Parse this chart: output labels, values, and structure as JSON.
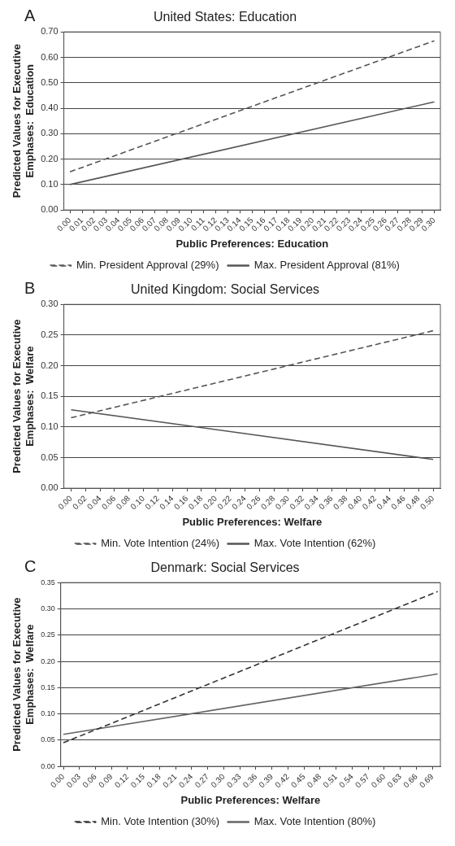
{
  "chart_data": [
    {
      "type": "line",
      "title": "United States: Education",
      "annotations": [
        "A"
      ],
      "xlabel": "Public Preferences: Education",
      "ylabel": "Predicted Values for Executive Emphases:  Education",
      "xlim": [
        -0.005,
        0.305
      ],
      "xticks": [
        {
          "value": 0,
          "label": "0.00"
        },
        {
          "value": 0.01,
          "label": "0.01"
        },
        {
          "value": 0.02,
          "label": "0.02"
        },
        {
          "value": 0.03,
          "label": "0.03"
        },
        {
          "value": 0.04,
          "label": "0.04"
        },
        {
          "value": 0.05,
          "label": "0.05"
        },
        {
          "value": 0.06,
          "label": "0.06"
        },
        {
          "value": 0.07,
          "label": "0.07"
        },
        {
          "value": 0.08,
          "label": "0.08"
        },
        {
          "value": 0.09,
          "label": "0.09"
        },
        {
          "value": 0.1,
          "label": "0.10"
        },
        {
          "value": 0.11,
          "label": "0.11"
        },
        {
          "value": 0.12,
          "label": "0.12"
        },
        {
          "value": 0.13,
          "label": "0.13"
        },
        {
          "value": 0.14,
          "label": "0.14"
        },
        {
          "value": 0.15,
          "label": "0.15"
        },
        {
          "value": 0.16,
          "label": "0.16"
        },
        {
          "value": 0.17,
          "label": "0.17"
        },
        {
          "value": 0.18,
          "label": "0.18"
        },
        {
          "value": 0.19,
          "label": "0.19"
        },
        {
          "value": 0.2,
          "label": "0.20"
        },
        {
          "value": 0.21,
          "label": "0.21"
        },
        {
          "value": 0.22,
          "label": "0.22"
        },
        {
          "value": 0.23,
          "label": "0.23"
        },
        {
          "value": 0.24,
          "label": "0.24"
        },
        {
          "value": 0.25,
          "label": "0.25"
        },
        {
          "value": 0.26,
          "label": "0.26"
        },
        {
          "value": 0.27,
          "label": "0.27"
        },
        {
          "value": 0.28,
          "label": "0.28"
        },
        {
          "value": 0.29,
          "label": "0.29"
        },
        {
          "value": 0.3,
          "label": "0.30"
        }
      ],
      "ylim": [
        0,
        0.7
      ],
      "yticks": [
        {
          "value": 0,
          "label": "0.00"
        },
        {
          "value": 0.1,
          "label": "0.10"
        },
        {
          "value": 0.2,
          "label": "0.20"
        },
        {
          "value": 0.3,
          "label": "0.30"
        },
        {
          "value": 0.4,
          "label": "0.40"
        },
        {
          "value": 0.5,
          "label": "0.50"
        },
        {
          "value": 0.6,
          "label": "0.60"
        },
        {
          "value": 0.7,
          "label": "0.70"
        }
      ],
      "grid": "y",
      "legend": "bottom",
      "x": [
        0,
        0.3
      ],
      "series": [
        {
          "name": "Min. President Approval (29%)",
          "color": "#555555",
          "line_style": "dashed",
          "values": [
            0.15,
            0.665
          ]
        },
        {
          "name": "Max. President Approval (81%)",
          "color": "#555555",
          "line_style": "solid",
          "values": [
            0.1,
            0.425
          ]
        }
      ]
    },
    {
      "type": "line",
      "title": "United Kingdom: Social Services",
      "annotations": [
        "B"
      ],
      "xlabel": "Public Preferences: Welfare",
      "ylabel": "Predicted Values for Executive Emphases:  Welfare",
      "xlim": [
        -0.01,
        0.51
      ],
      "xticks": [
        {
          "value": 0,
          "label": "0.00"
        },
        {
          "value": 0.02,
          "label": "0.02"
        },
        {
          "value": 0.04,
          "label": "0.04"
        },
        {
          "value": 0.06,
          "label": "0.06"
        },
        {
          "value": 0.08,
          "label": "0.08"
        },
        {
          "value": 0.1,
          "label": "0.10"
        },
        {
          "value": 0.12,
          "label": "0.12"
        },
        {
          "value": 0.14,
          "label": "0.14"
        },
        {
          "value": 0.16,
          "label": "0.16"
        },
        {
          "value": 0.18,
          "label": "0.18"
        },
        {
          "value": 0.2,
          "label": "0.20"
        },
        {
          "value": 0.22,
          "label": "0.22"
        },
        {
          "value": 0.24,
          "label": "0.24"
        },
        {
          "value": 0.26,
          "label": "0.26"
        },
        {
          "value": 0.28,
          "label": "0.28"
        },
        {
          "value": 0.3,
          "label": "0.30"
        },
        {
          "value": 0.32,
          "label": "0.32"
        },
        {
          "value": 0.34,
          "label": "0.34"
        },
        {
          "value": 0.36,
          "label": "0.36"
        },
        {
          "value": 0.38,
          "label": "0.38"
        },
        {
          "value": 0.4,
          "label": "0.40"
        },
        {
          "value": 0.42,
          "label": "0.42"
        },
        {
          "value": 0.44,
          "label": "0.44"
        },
        {
          "value": 0.46,
          "label": "0.46"
        },
        {
          "value": 0.48,
          "label": "0.48"
        },
        {
          "value": 0.5,
          "label": "0.50"
        }
      ],
      "ylim": [
        0,
        0.3
      ],
      "yticks": [
        {
          "value": 0,
          "label": "0.00"
        },
        {
          "value": 0.05,
          "label": "0.05"
        },
        {
          "value": 0.1,
          "label": "0.10"
        },
        {
          "value": 0.15,
          "label": "0.15"
        },
        {
          "value": 0.2,
          "label": "0.20"
        },
        {
          "value": 0.25,
          "label": "0.25"
        },
        {
          "value": 0.3,
          "label": "0.30"
        }
      ],
      "grid": "y",
      "legend": "bottom",
      "x": [
        0,
        0.5
      ],
      "series": [
        {
          "name": "Min. Vote Intention (24%)",
          "color": "#555555",
          "line_style": "dashed",
          "values": [
            0.115,
            0.257
          ]
        },
        {
          "name": "Max. Vote Intention (62%)",
          "color": "#555555",
          "line_style": "solid",
          "values": [
            0.128,
            0.047
          ]
        }
      ]
    },
    {
      "type": "line",
      "title": "Denmark: Social Services",
      "annotations": [
        "C"
      ],
      "xlabel": "Public Preferences: Welfare",
      "ylabel": "Predicted Values for Executive Emphases:  Welfare",
      "xlim": [
        -0.005,
        0.705
      ],
      "xticks": [
        {
          "value": 0,
          "label": "0.00"
        },
        {
          "value": 0.03,
          "label": "0.03"
        },
        {
          "value": 0.06,
          "label": "0.06"
        },
        {
          "value": 0.09,
          "label": "0.09"
        },
        {
          "value": 0.12,
          "label": "0.12"
        },
        {
          "value": 0.15,
          "label": "0.15"
        },
        {
          "value": 0.18,
          "label": "0.18"
        },
        {
          "value": 0.21,
          "label": "0.21"
        },
        {
          "value": 0.24,
          "label": "0.24"
        },
        {
          "value": 0.27,
          "label": "0.27"
        },
        {
          "value": 0.3,
          "label": "0.30"
        },
        {
          "value": 0.33,
          "label": "0.33"
        },
        {
          "value": 0.36,
          "label": "0.36"
        },
        {
          "value": 0.39,
          "label": "0.39"
        },
        {
          "value": 0.42,
          "label": "0.42"
        },
        {
          "value": 0.45,
          "label": "0.45"
        },
        {
          "value": 0.48,
          "label": "0.48"
        },
        {
          "value": 0.51,
          "label": "0.51"
        },
        {
          "value": 0.54,
          "label": "0.54"
        },
        {
          "value": 0.57,
          "label": "0.57"
        },
        {
          "value": 0.6,
          "label": "0.60"
        },
        {
          "value": 0.63,
          "label": "0.63"
        },
        {
          "value": 0.66,
          "label": "0.66"
        },
        {
          "value": 0.69,
          "label": "0.69"
        }
      ],
      "ylim": [
        0,
        0.35
      ],
      "yticks": [
        {
          "value": 0,
          "label": "0.00"
        },
        {
          "value": 0.05,
          "label": "0.05"
        },
        {
          "value": 0.1,
          "label": "0.10"
        },
        {
          "value": 0.15,
          "label": "0.15"
        },
        {
          "value": 0.2,
          "label": "0.20"
        },
        {
          "value": 0.25,
          "label": "0.25"
        },
        {
          "value": 0.3,
          "label": "0.30"
        },
        {
          "value": 0.35,
          "label": "0.35"
        }
      ],
      "grid": "y",
      "legend": "bottom",
      "x": [
        0,
        0.7
      ],
      "series": [
        {
          "name": "Min. Vote Intention (30%)",
          "color": "#333333",
          "line_style": "dashed",
          "values": [
            0.045,
            0.333
          ]
        },
        {
          "name": "Max. Vote Intention (80%)",
          "color": "#666666",
          "line_style": "solid",
          "values": [
            0.061,
            0.176
          ]
        }
      ]
    }
  ]
}
